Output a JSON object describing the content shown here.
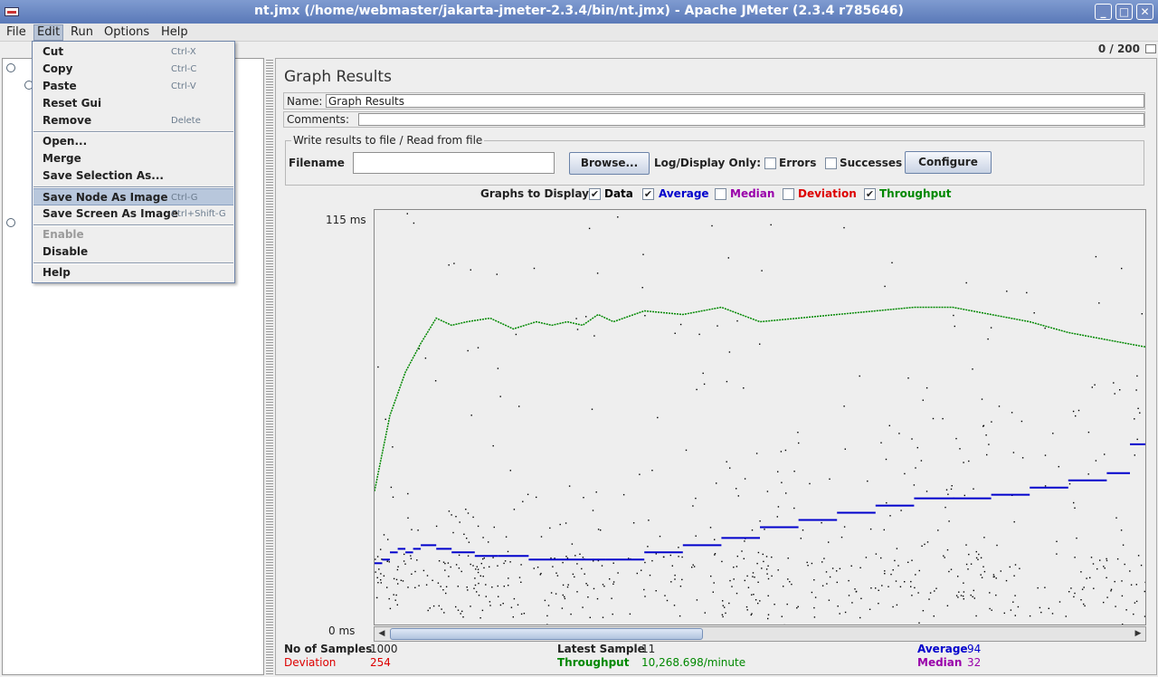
{
  "window": {
    "title": "nt.jmx (/home/webmaster/jakarta-jmeter-2.3.4/bin/nt.jmx) - Apache JMeter (2.3.4 r785646)",
    "minimize_glyph": "_",
    "maximize_glyph": "□",
    "close_glyph": "✕"
  },
  "menubar": {
    "items": [
      "File",
      "Edit",
      "Run",
      "Options",
      "Help"
    ],
    "active": "Edit"
  },
  "edit_menu": {
    "items": [
      {
        "label": "Cut",
        "shortcut": "Ctrl-X"
      },
      {
        "label": "Copy",
        "shortcut": "Ctrl-C"
      },
      {
        "label": "Paste",
        "shortcut": "Ctrl-V"
      },
      {
        "label": "Reset Gui",
        "shortcut": ""
      },
      {
        "label": "Remove",
        "shortcut": "Delete"
      },
      {
        "label": "Open...",
        "shortcut": ""
      },
      {
        "label": "Merge",
        "shortcut": ""
      },
      {
        "label": "Save Selection As...",
        "shortcut": ""
      },
      {
        "label": "Save Node As Image",
        "shortcut": "Ctrl-G"
      },
      {
        "label": "Save Screen As Image",
        "shortcut": "Ctrl+Shift-G"
      },
      {
        "label": "Enable",
        "shortcut": ""
      },
      {
        "label": "Disable",
        "shortcut": ""
      },
      {
        "label": "Help",
        "shortcut": ""
      }
    ],
    "selected": "Save Node As Image",
    "disabled": [
      "Enable"
    ]
  },
  "status": {
    "thread_counter": "0 / 200"
  },
  "panel": {
    "title": "Graph Results",
    "name_label": "Name:",
    "name_value": "Graph Results",
    "comments_label": "Comments:",
    "comments_value": "",
    "file_group_legend": "Write results to file / Read from file",
    "filename_label": "Filename",
    "filename_value": "",
    "browse_label": "Browse...",
    "log_display_label": "Log/Display Only:",
    "errors_label": "Errors",
    "successes_label": "Successes",
    "configure_label": "Configure",
    "graphs_to_display_label": "Graphs to Display",
    "graph_toggles": [
      {
        "label": "Data",
        "checked": true,
        "color": "#000000"
      },
      {
        "label": "Average",
        "checked": true,
        "color": "#0000cc"
      },
      {
        "label": "Median",
        "checked": false,
        "color": "#9900aa"
      },
      {
        "label": "Deviation",
        "checked": false,
        "color": "#dd0000"
      },
      {
        "label": "Throughput",
        "checked": true,
        "color": "#008800"
      }
    ]
  },
  "chart_data": {
    "type": "scatter",
    "ylim": [
      0,
      115
    ],
    "ytick_labels": [
      "115 ms",
      "0 ms"
    ],
    "series": [
      {
        "name": "Throughput",
        "color": "#008800",
        "style": "line",
        "x": [
          0,
          2,
          4,
          6,
          8,
          10,
          12,
          15,
          18,
          21,
          23,
          25,
          27,
          29,
          31,
          35,
          40,
          45,
          50,
          55,
          60,
          65,
          70,
          75,
          80,
          85,
          90,
          95,
          100
        ],
        "y": [
          37,
          58,
          70,
          78,
          85,
          83,
          84,
          85,
          82,
          84,
          83,
          84,
          83,
          86,
          84,
          87,
          86,
          88,
          84,
          85,
          86,
          87,
          88,
          88,
          86,
          84,
          81,
          79,
          77
        ]
      },
      {
        "name": "Average",
        "color": "#0000cc",
        "style": "steps",
        "x": [
          0,
          1,
          2,
          3,
          4,
          5,
          6,
          8,
          10,
          13,
          16,
          20,
          25,
          30,
          35,
          40,
          45,
          50,
          55,
          60,
          65,
          70,
          75,
          80,
          85,
          90,
          95,
          98,
          100
        ],
        "y": [
          17,
          18,
          20,
          21,
          20,
          21,
          22,
          21,
          20,
          19,
          19,
          18,
          18,
          18,
          20,
          22,
          24,
          27,
          29,
          31,
          33,
          35,
          35,
          36,
          38,
          40,
          42,
          50,
          54
        ]
      },
      {
        "name": "Data",
        "color": "#000000",
        "style": "points"
      }
    ]
  },
  "stats": {
    "samples_label": "No of Samples",
    "samples_value": "1000",
    "latest_label": "Latest Sample",
    "latest_value": "11",
    "average_label": "Average",
    "average_value": "94",
    "deviation_label": "Deviation",
    "deviation_value": "254",
    "throughput_label": "Throughput",
    "throughput_value": "10,268.698/minute",
    "median_label": "Median",
    "median_value": "32",
    "colors": {
      "deviation": "#dd0000",
      "throughput": "#008800",
      "average": "#0000cc",
      "median": "#9900aa"
    }
  }
}
